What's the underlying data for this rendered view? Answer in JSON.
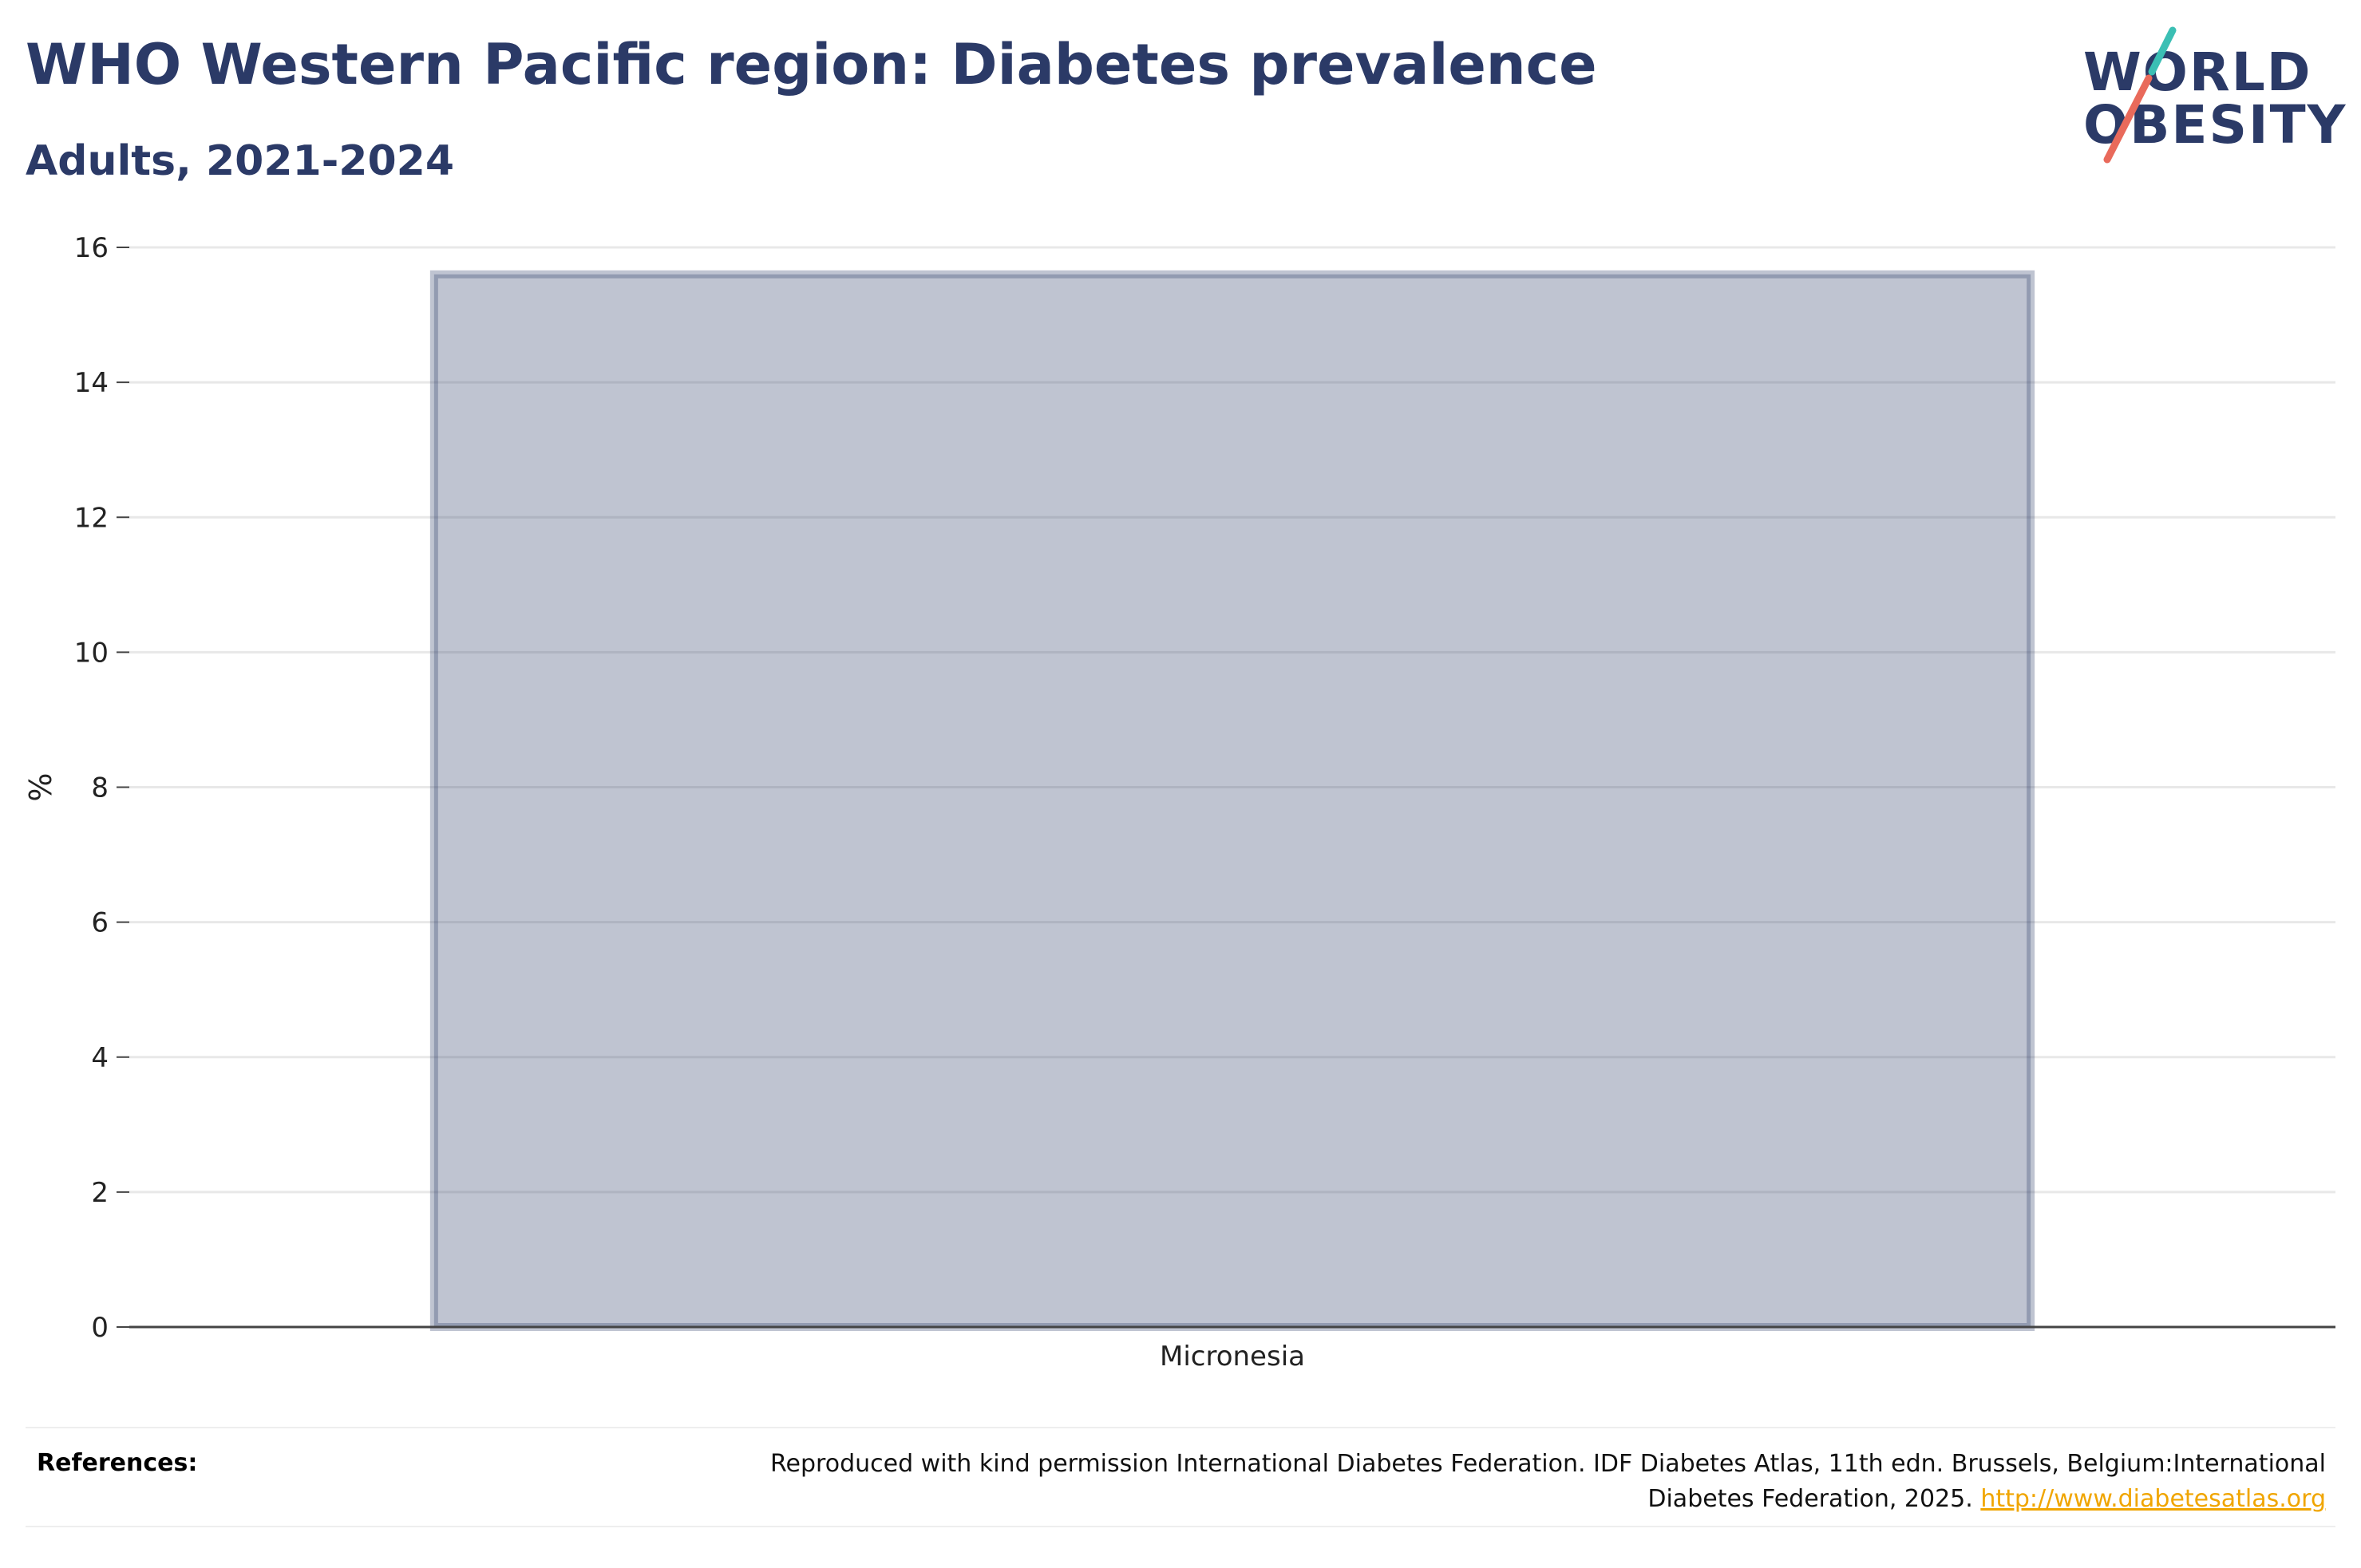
{
  "header": {
    "title": "WHO Western Pacific region: Diabetes prevalence",
    "subtitle": "Adults, 2021-2024"
  },
  "logo": {
    "line1": "WORLD",
    "line2": "OBESITY",
    "colors": {
      "text": "#2b3a67",
      "slash_top": "#3bbfb4",
      "slash_bottom": "#e96a5b"
    }
  },
  "chart_data": {
    "type": "bar",
    "categories": [
      "Micronesia"
    ],
    "series": [
      {
        "values": [
          15.6
        ]
      }
    ],
    "title": "WHO Western Pacific region: Diabetes prevalence",
    "subtitle": "Adults, 2021-2024",
    "xlabel": "",
    "ylabel": "%",
    "ylim": [
      0,
      16
    ],
    "yticks": [
      0,
      2,
      4,
      6,
      8,
      10,
      12,
      14,
      16
    ],
    "grid": true,
    "legend": "none",
    "colors": {
      "bar_fill": "#2b3a67",
      "bar_fill_opacity": 0.3,
      "grid": "#e8e8e8",
      "axis": "#444444"
    }
  },
  "footer": {
    "label": "References:",
    "text": "Reproduced with kind permission International Diabetes Federation. IDF Diabetes Atlas, 11th edn. Brussels, Belgium:International Diabetes Federation, 2025.",
    "link_text": "http://www.diabetesatlas.org",
    "link_color": "#f0a500"
  }
}
